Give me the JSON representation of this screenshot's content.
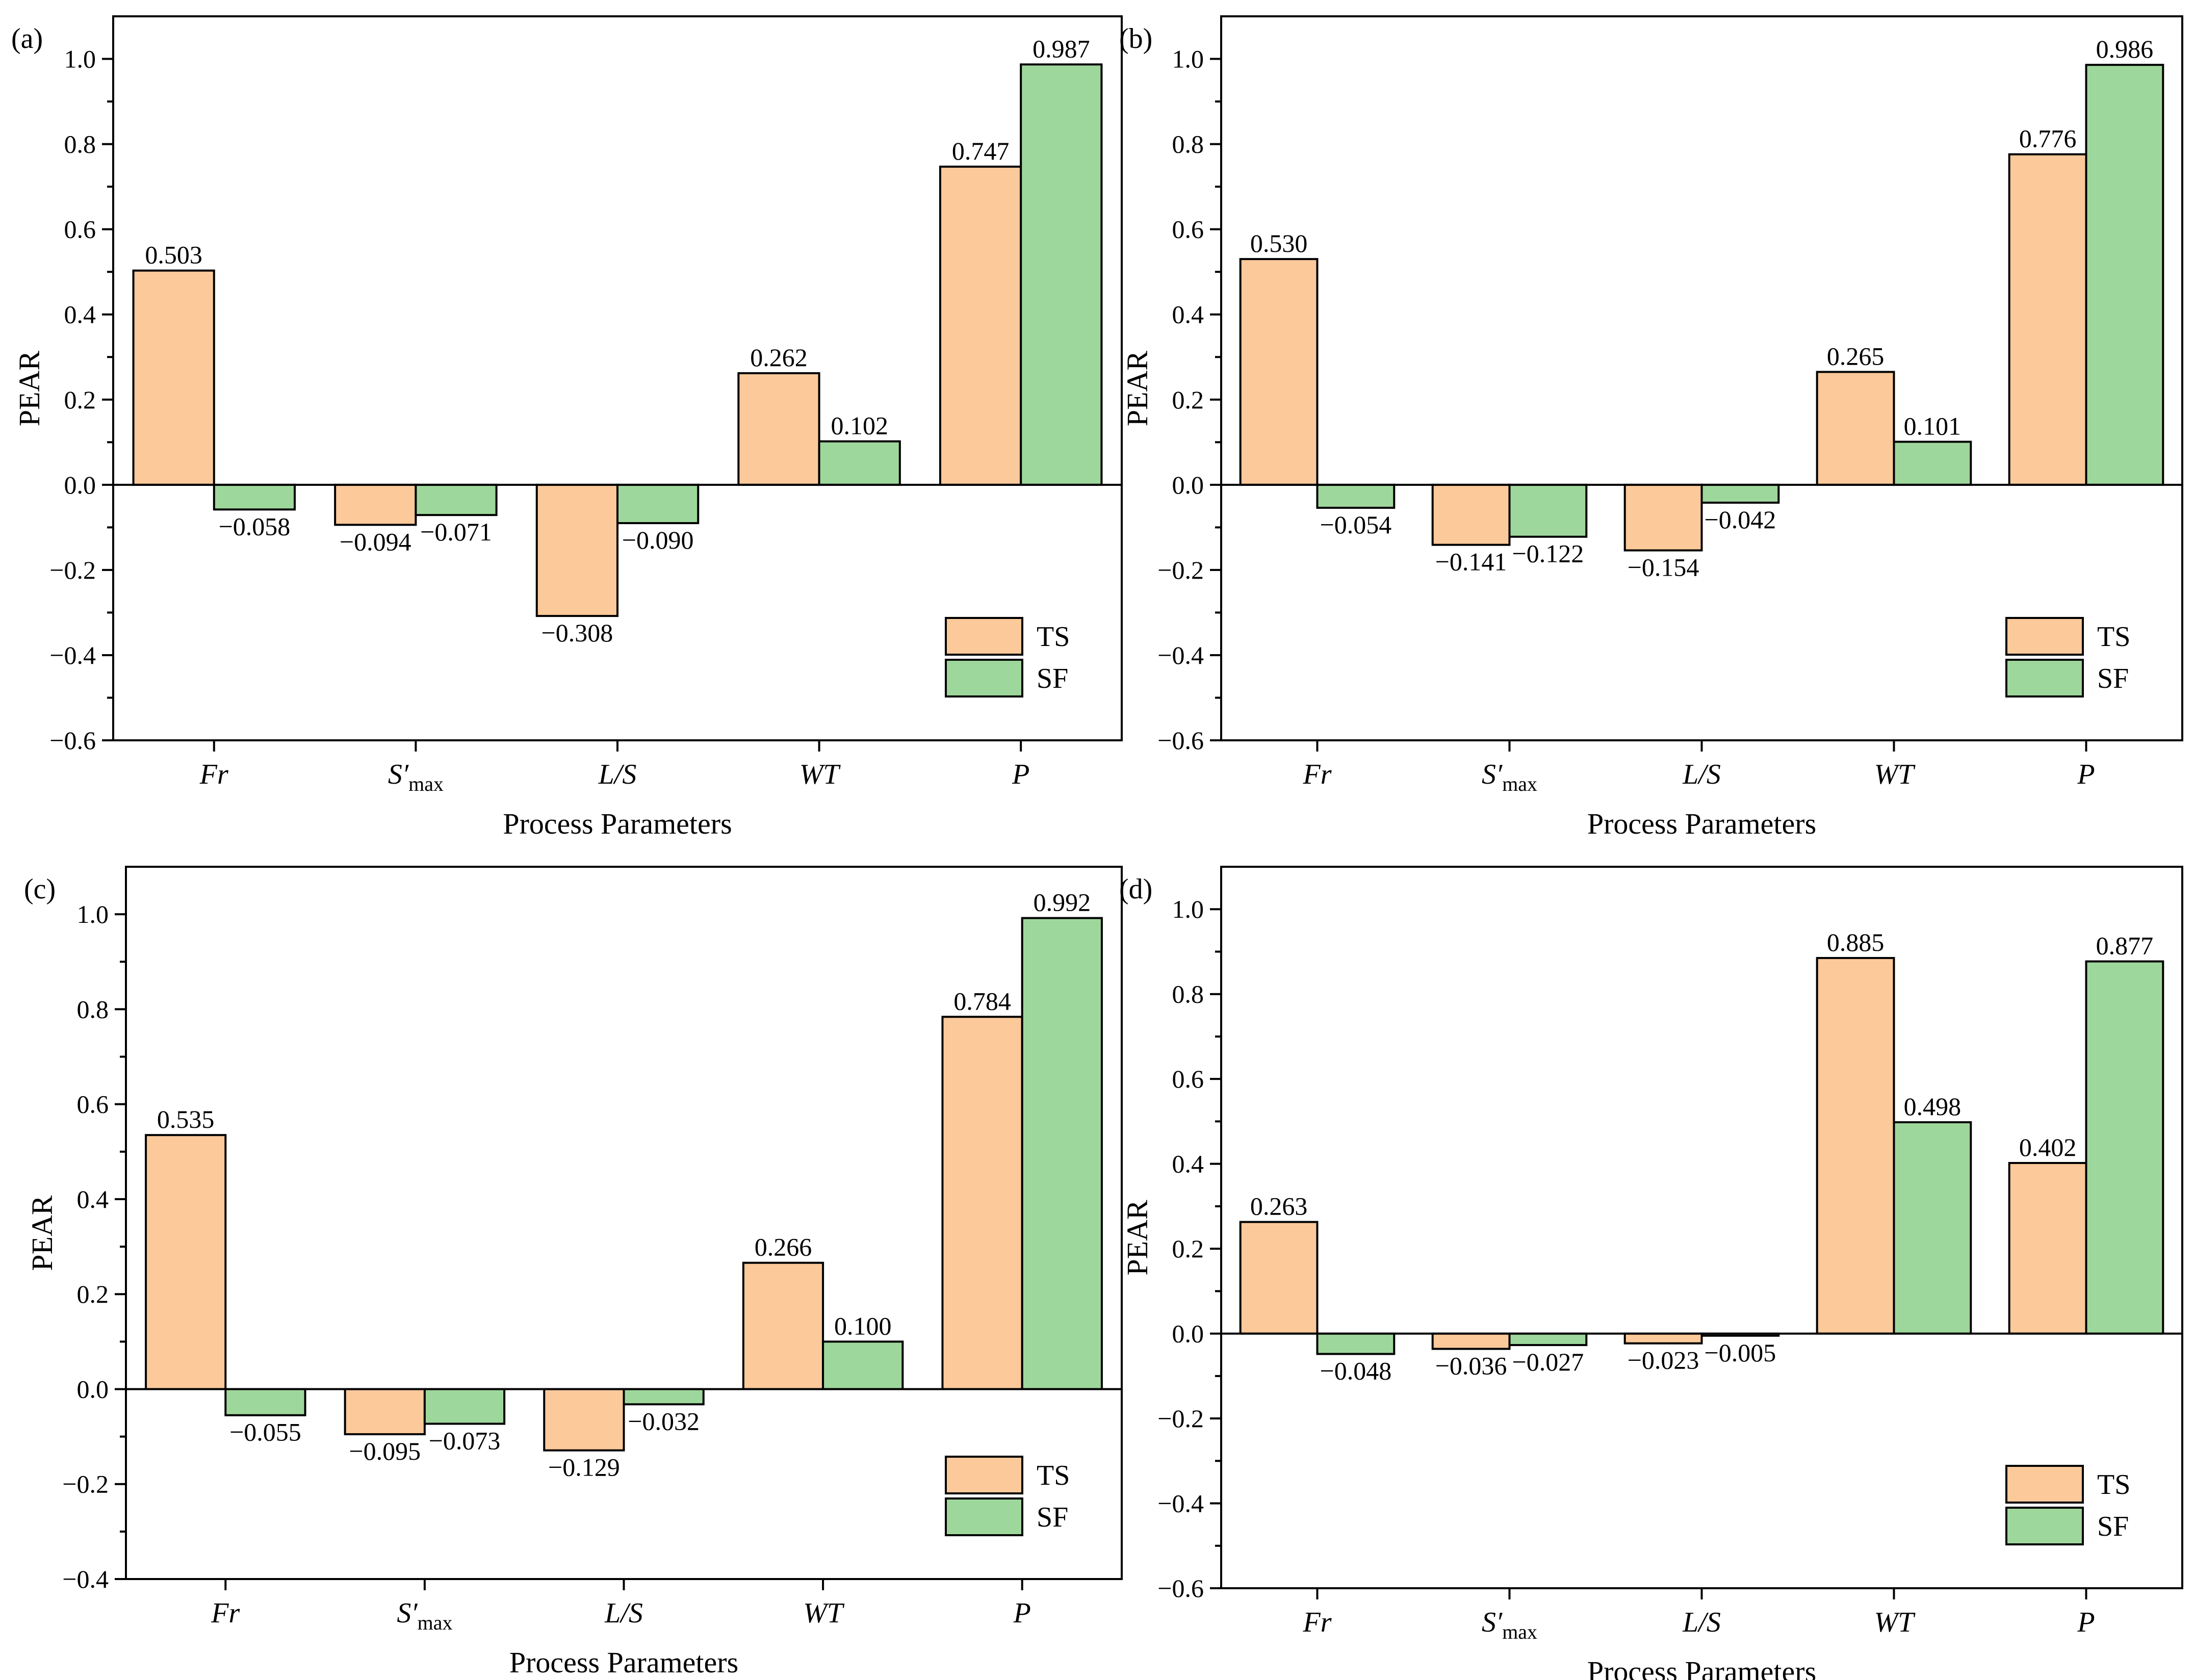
{
  "colors": {
    "ts": "#FBC99A",
    "sf": "#9ED79B"
  },
  "chart_data": [
    {
      "type": "bar",
      "panel_label": "(a)",
      "categories": [
        "Fr",
        "S′max",
        "L/S",
        "WT",
        "P"
      ],
      "category_labels": [
        {
          "main": "Fr",
          "sub": ""
        },
        {
          "main": "S′",
          "sub": "max"
        },
        {
          "main": "L/S",
          "sub": ""
        },
        {
          "main": "WT",
          "sub": ""
        },
        {
          "main": "P",
          "sub": ""
        }
      ],
      "series": [
        {
          "name": "TS",
          "values": [
            0.503,
            -0.094,
            -0.308,
            0.262,
            0.747
          ],
          "labels": [
            "0.503",
            "−0.094",
            "−0.308",
            "0.262",
            "0.747"
          ]
        },
        {
          "name": "SF",
          "values": [
            -0.058,
            -0.071,
            -0.09,
            0.102,
            0.987
          ],
          "labels": [
            "−0.058",
            "−0.071",
            "−0.090",
            "0.102",
            "0.987"
          ]
        }
      ],
      "xlabel": "Process Parameters",
      "ylabel": "PEAR",
      "ylim": [
        -0.6,
        1.1
      ],
      "yticks": [
        -0.6,
        -0.4,
        -0.2,
        0.0,
        0.2,
        0.4,
        0.6,
        0.8,
        1.0
      ],
      "ytick_labels": [
        "−0.6",
        "−0.4",
        "−0.2",
        "0.0",
        "0.2",
        "0.4",
        "0.6",
        "0.8",
        "1.0"
      ],
      "legend_position": "bottom-right"
    },
    {
      "type": "bar",
      "panel_label": "(b)",
      "categories": [
        "Fr",
        "S′max",
        "L/S",
        "WT",
        "P"
      ],
      "category_labels": [
        {
          "main": "Fr",
          "sub": ""
        },
        {
          "main": "S′",
          "sub": "max"
        },
        {
          "main": "L/S",
          "sub": ""
        },
        {
          "main": "WT",
          "sub": ""
        },
        {
          "main": "P",
          "sub": ""
        }
      ],
      "series": [
        {
          "name": "TS",
          "values": [
            0.53,
            -0.141,
            -0.154,
            0.265,
            0.776
          ],
          "labels": [
            "0.530",
            "−0.141",
            "−0.154",
            "0.265",
            "0.776"
          ]
        },
        {
          "name": "SF",
          "values": [
            -0.054,
            -0.122,
            -0.042,
            0.101,
            0.986
          ],
          "labels": [
            "−0.054",
            "−0.122",
            "−0.042",
            "0.101",
            "0.986"
          ]
        }
      ],
      "xlabel": "Process Parameters",
      "ylabel": "PEAR",
      "ylim": [
        -0.6,
        1.1
      ],
      "yticks": [
        -0.6,
        -0.4,
        -0.2,
        0.0,
        0.2,
        0.4,
        0.6,
        0.8,
        1.0
      ],
      "ytick_labels": [
        "−0.6",
        "−0.4",
        "−0.2",
        "0.0",
        "0.2",
        "0.4",
        "0.6",
        "0.8",
        "1.0"
      ],
      "legend_position": "bottom-right"
    },
    {
      "type": "bar",
      "panel_label": "(c)",
      "categories": [
        "Fr",
        "S′max",
        "L/S",
        "WT",
        "P"
      ],
      "category_labels": [
        {
          "main": "Fr",
          "sub": ""
        },
        {
          "main": "S′",
          "sub": "max"
        },
        {
          "main": "L/S",
          "sub": ""
        },
        {
          "main": "WT",
          "sub": ""
        },
        {
          "main": "P",
          "sub": ""
        }
      ],
      "series": [
        {
          "name": "TS",
          "values": [
            0.535,
            -0.095,
            -0.129,
            0.266,
            0.784
          ],
          "labels": [
            "0.535",
            "−0.095",
            "−0.129",
            "0.266",
            "0.784"
          ]
        },
        {
          "name": "SF",
          "values": [
            -0.055,
            -0.073,
            -0.032,
            0.1,
            0.992
          ],
          "labels": [
            "−0.055",
            "−0.073",
            "−0.032",
            "0.100",
            "0.992"
          ]
        }
      ],
      "xlabel": "Process Parameters",
      "ylabel": "PEAR",
      "ylim": [
        -0.4,
        1.1
      ],
      "yticks": [
        -0.4,
        -0.2,
        0.0,
        0.2,
        0.4,
        0.6,
        0.8,
        1.0
      ],
      "ytick_labels": [
        "−0.4",
        "−0.2",
        "0.0",
        "0.2",
        "0.4",
        "0.6",
        "0.8",
        "1.0"
      ],
      "legend_position": "bottom-right"
    },
    {
      "type": "bar",
      "panel_label": "(d)",
      "categories": [
        "Fr",
        "S′max",
        "L/S",
        "WT",
        "P"
      ],
      "category_labels": [
        {
          "main": "Fr",
          "sub": ""
        },
        {
          "main": "S′",
          "sub": "max"
        },
        {
          "main": "L/S",
          "sub": ""
        },
        {
          "main": "WT",
          "sub": ""
        },
        {
          "main": "P",
          "sub": ""
        }
      ],
      "series": [
        {
          "name": "TS",
          "values": [
            0.263,
            -0.036,
            -0.023,
            0.885,
            0.402
          ],
          "labels": [
            "0.263",
            "−0.036",
            "−0.023",
            "0.885",
            "0.402"
          ]
        },
        {
          "name": "SF",
          "values": [
            -0.048,
            -0.027,
            -0.005,
            0.498,
            0.877
          ],
          "labels": [
            "−0.048",
            "−0.027",
            "−0.005",
            "0.498",
            "0.877"
          ]
        }
      ],
      "xlabel": "Process Parameters",
      "ylabel": "PEAR",
      "ylim": [
        -0.6,
        1.1
      ],
      "yticks": [
        -0.6,
        -0.4,
        -0.2,
        0.0,
        0.2,
        0.4,
        0.6,
        0.8,
        1.0
      ],
      "ytick_labels": [
        "−0.6",
        "−0.4",
        "−0.2",
        "0.0",
        "0.2",
        "0.4",
        "0.6",
        "0.8",
        "1.0"
      ],
      "legend_position": "bottom-right"
    }
  ]
}
